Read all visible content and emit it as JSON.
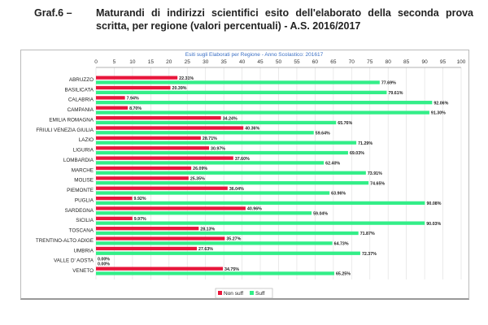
{
  "figure": {
    "number": "Graf.6 –",
    "caption": "Maturandi di indirizzi scientifici esito dell'elaborato della seconda prova scritta, per regione (valori percentuali) - A.S. 2016/2017"
  },
  "chart_data": {
    "type": "bar",
    "orientation": "horizontal",
    "title": "Esiti sugli Elaborati per Regione - Anno Scolastico: 201617",
    "xlim": [
      0,
      100
    ],
    "xticks": [
      0,
      5,
      10,
      15,
      20,
      25,
      30,
      35,
      40,
      45,
      50,
      55,
      60,
      65,
      70,
      75,
      80,
      85,
      90,
      95,
      100
    ],
    "grid": true,
    "legend_position": "bottom-center",
    "categories": [
      "ABRUZZO",
      "BASILICATA",
      "CALABRIA",
      "CAMPANIA",
      "EMILIA ROMAGNA",
      "FRIULI VENEZIA GIULIA",
      "LAZIO",
      "LIGURIA",
      "LOMBARDIA",
      "MARCHE",
      "MOLISE",
      "PIEMONTE",
      "PUGLIA",
      "SARDEGNA",
      "SICILIA",
      "TOSCANA",
      "TRENTINO-ALTO ADIGE",
      "UMBRIA",
      "VALLE D' AOSTA",
      "VENETO"
    ],
    "series": [
      {
        "name": "Non suff",
        "color": "#e8173c",
        "values": [
          22.31,
          20.39,
          7.94,
          8.7,
          34.24,
          40.36,
          28.71,
          30.97,
          37.6,
          26.09,
          25.35,
          36.04,
          9.92,
          40.96,
          9.97,
          28.13,
          35.27,
          27.63,
          0.0,
          34.75
        ]
      },
      {
        "name": "Suff",
        "color": "#33ee88",
        "values": [
          77.69,
          79.61,
          92.06,
          91.3,
          65.76,
          59.64,
          71.29,
          69.03,
          62.4,
          73.91,
          74.65,
          63.96,
          90.08,
          59.04,
          90.03,
          71.87,
          64.73,
          72.37,
          0.0,
          65.25
        ]
      }
    ]
  }
}
